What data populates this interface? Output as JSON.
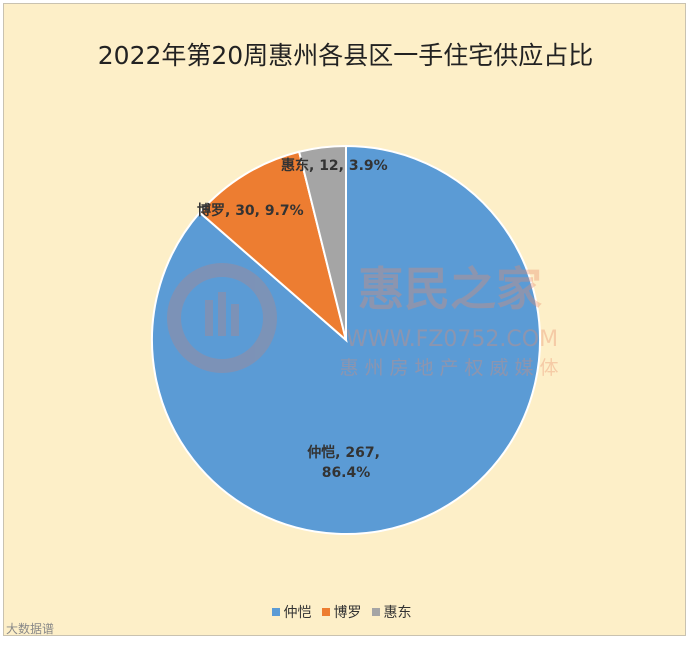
{
  "chart_data": {
    "type": "pie",
    "title": "2022年第20周惠州各县区一手住宅供应占比",
    "slices": [
      {
        "name": "仲恺",
        "value": 267,
        "percent": "86.4%",
        "color": "#5b9bd5"
      },
      {
        "name": "博罗",
        "value": 30,
        "percent": "9.7%",
        "color": "#ed7d31"
      },
      {
        "name": "惠东",
        "value": 12,
        "percent": "3.9%",
        "color": "#a5a5a5"
      }
    ],
    "data_labels": {
      "zhongkai_line1": "仲恺, 267,",
      "zhongkai_line2": "86.4%",
      "boluo": "博罗, 30, 9.7%",
      "huidong": "惠东, 12, 3.9%"
    },
    "legend": [
      "仲恺",
      "博罗",
      "惠东"
    ],
    "legend_position": "bottom"
  },
  "watermark": {
    "brand": "惠民之家",
    "url": "WWW.FZ0752.COM",
    "tagline": "惠州房地产权威媒体",
    "corner": "大数据谱"
  }
}
